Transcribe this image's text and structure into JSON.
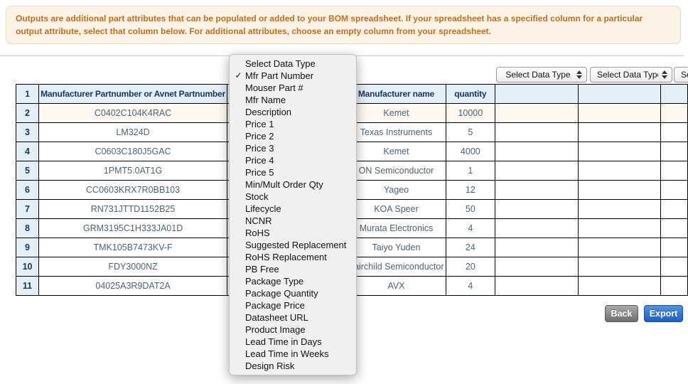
{
  "banner": {
    "text": "Outputs are additional part attributes that can be populated or added to your BOM spreadsheet. If your spreadsheet has a specified column for a particular output attribute, select that column below. For additional attributes, choose an empty column from your spreadsheet."
  },
  "column_selects": {
    "placeholder": "Select Data Type"
  },
  "dropdown_menu": {
    "check_glyph": "✓",
    "selected_item": "Mfr Part Number",
    "items": [
      {
        "label": "Select Data Type",
        "checked": false
      },
      {
        "label": "Mfr Part Number",
        "checked": true
      },
      {
        "label": "Mouser Part #",
        "checked": false
      },
      {
        "label": "Mfr Name",
        "checked": false
      },
      {
        "label": "Description",
        "checked": false
      },
      {
        "label": "Price 1",
        "checked": false
      },
      {
        "label": "Price 2",
        "checked": false
      },
      {
        "label": "Price 3",
        "checked": false
      },
      {
        "label": "Price 4",
        "checked": false
      },
      {
        "label": "Price 5",
        "checked": false
      },
      {
        "label": "Min/Mult Order Qty",
        "checked": false
      },
      {
        "label": "Stock",
        "checked": false
      },
      {
        "label": "Lifecycle",
        "checked": false
      },
      {
        "label": "NCNR",
        "checked": false
      },
      {
        "label": "RoHS",
        "checked": false
      },
      {
        "label": "Suggested Replacement",
        "checked": false
      },
      {
        "label": "RoHS Replacement",
        "checked": false
      },
      {
        "label": "PB Free",
        "checked": false
      },
      {
        "label": "Package Type",
        "checked": false
      },
      {
        "label": "Package Quantity",
        "checked": false
      },
      {
        "label": "Package Price",
        "checked": false
      },
      {
        "label": "Datasheet URL",
        "checked": false
      },
      {
        "label": "Product Image",
        "checked": false
      },
      {
        "label": "Lead Time in Days",
        "checked": false
      },
      {
        "label": "Lead Time in Weeks",
        "checked": false
      },
      {
        "label": "Design Risk",
        "checked": false
      }
    ]
  },
  "table": {
    "header": {
      "row_num": "1",
      "part_col": "Manufacturer Partnumber or Avnet Partnumber",
      "covered_col": "",
      "mfr_col": "Manufacturer name",
      "qty_col": "quantity"
    },
    "rows": [
      {
        "num": "2",
        "part": "C0402C104K4RAC",
        "mfr": "Kemet",
        "qty": "10000"
      },
      {
        "num": "3",
        "part": "LM324D",
        "mfr": "Texas Instruments",
        "qty": "5"
      },
      {
        "num": "4",
        "part": "C0603C180J5GAC",
        "mfr": "Kemet",
        "qty": "4000"
      },
      {
        "num": "5",
        "part": "1PMT5.0AT1G",
        "mfr": "ON Semiconductor",
        "qty": "1"
      },
      {
        "num": "6",
        "part": "CC0603KRX7R0BB103",
        "mfr": "Yageo",
        "qty": "12"
      },
      {
        "num": "7",
        "part": "RN731JTTD1152B25",
        "mfr": "KOA Speer",
        "qty": "50"
      },
      {
        "num": "8",
        "part": "GRM3195C1H333JA01D",
        "mfr": "Murata Electronics",
        "qty": "4"
      },
      {
        "num": "9",
        "part": "TMK105B7473KV-F",
        "mfr": "Taiyo Yuden",
        "qty": "24"
      },
      {
        "num": "10",
        "part": "FDY3000NZ",
        "mfr": "Fairchild Semiconductor",
        "qty": "20"
      },
      {
        "num": "11",
        "part": "04025A3R9DAT2A",
        "mfr": "AVX",
        "qty": "4"
      }
    ]
  },
  "buttons": {
    "back": "Back",
    "export": "Export"
  },
  "colors": {
    "banner_bg": "#faf3e6",
    "banner_text": "#c86f18",
    "header_bg": "#e4eef7",
    "header_text": "#17375e",
    "cell_text": "#4d6377",
    "export_blue": "#1a5dc8"
  }
}
